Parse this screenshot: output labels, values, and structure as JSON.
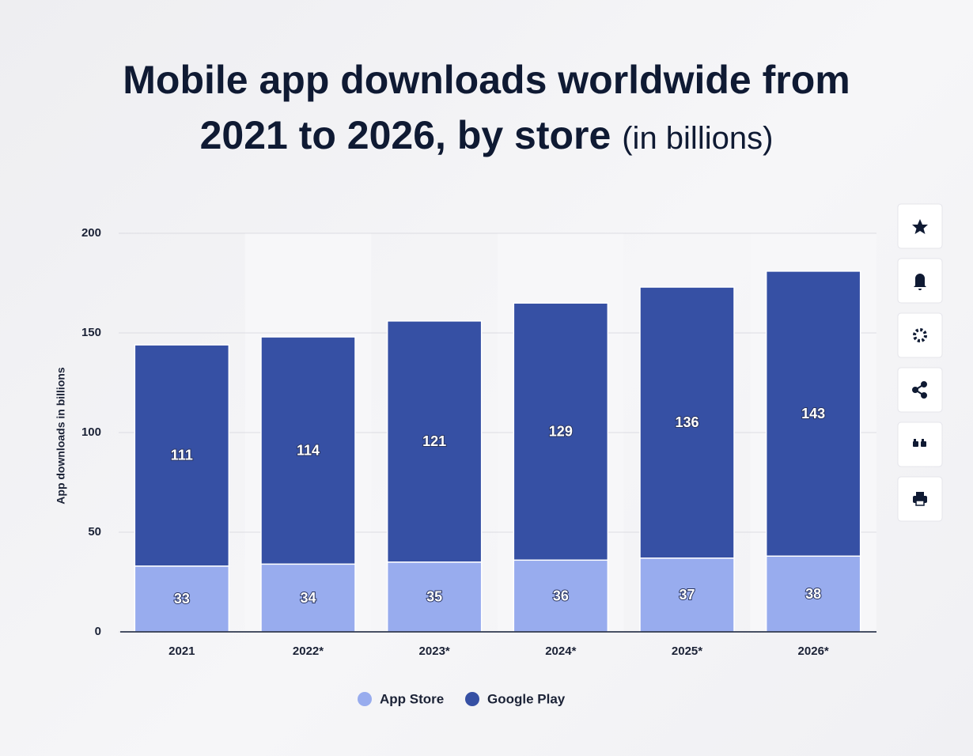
{
  "chart_data": {
    "type": "stacked_bar",
    "title": "Mobile app downloads worldwide from 2021 to 2026, by store",
    "subtitle": "(in billions)",
    "y_label": "App downloads in billions",
    "categories": [
      "2021",
      "2022*",
      "2023*",
      "2024*",
      "2025*",
      "2026*"
    ],
    "series": [
      {
        "name": "App Store",
        "color": "#98acee",
        "values": [
          33,
          34,
          35,
          36,
          37,
          38
        ]
      },
      {
        "name": "Google Play",
        "color": "#3650a4",
        "values": [
          111,
          114,
          121,
          129,
          136,
          143
        ]
      }
    ],
    "ylim": [
      0,
      200
    ],
    "yticks": [
      0,
      50,
      100,
      150,
      200
    ],
    "grid": true
  }
}
